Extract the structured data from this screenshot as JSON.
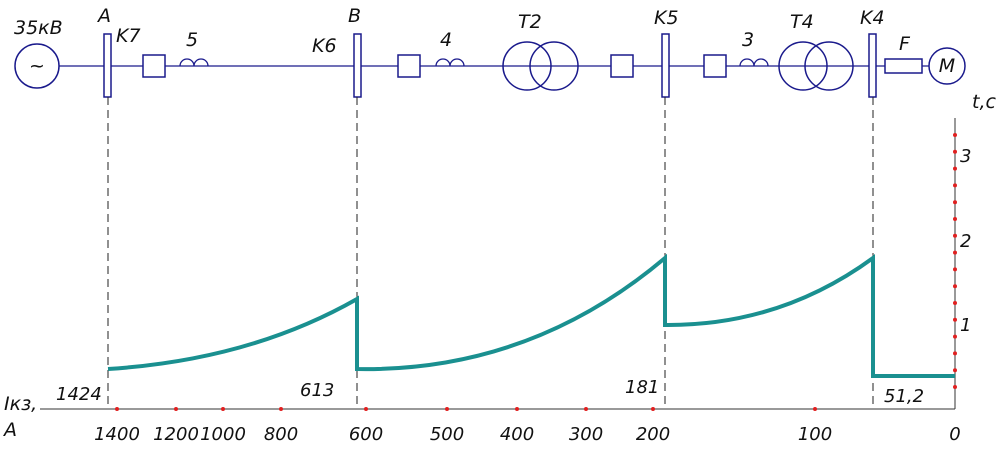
{
  "labels": {
    "voltage": "35кВ",
    "generator": "~",
    "bus_a": "A",
    "k7": "K7",
    "reactor_5": "5",
    "k6": "K6",
    "bus_b": "B",
    "reactor_4": "4",
    "t2": "T2",
    "k5": "K5",
    "reactor_3": "3",
    "t4": "T4",
    "k4": "K4",
    "fuse": "F",
    "motor": "M"
  },
  "time_axis": {
    "label": "t,c",
    "ticks": [
      "3",
      "2",
      "1"
    ]
  },
  "current_axis": {
    "label_line1": "Iкз,",
    "label_line2": "A",
    "ticks": [
      "1400",
      "1200",
      "1000",
      "800",
      "600",
      "500",
      "400",
      "300",
      "200",
      "100",
      "0"
    ]
  },
  "fault_currents": [
    "1424",
    "613",
    "181",
    "51,2"
  ]
}
